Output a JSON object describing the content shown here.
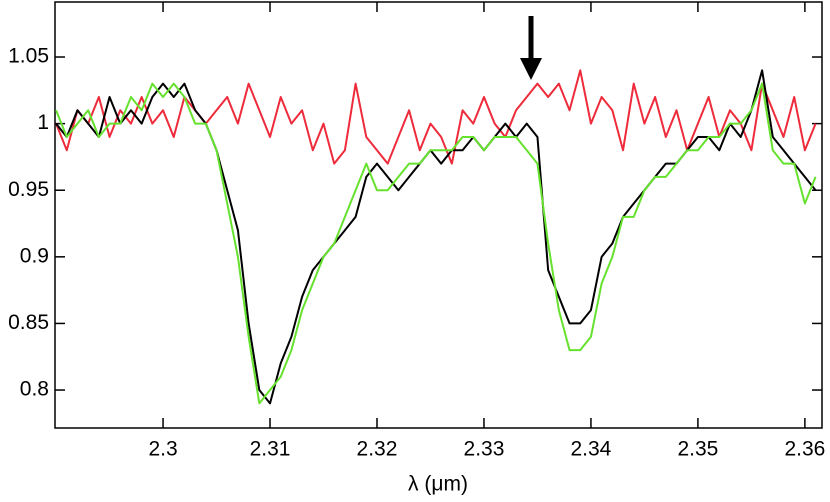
{
  "chart_data": {
    "type": "line",
    "xlabel": "λ (μm)",
    "x": [
      2.29,
      2.291,
      2.292,
      2.293,
      2.294,
      2.295,
      2.296,
      2.297,
      2.298,
      2.299,
      2.3,
      2.301,
      2.302,
      2.303,
      2.304,
      2.305,
      2.306,
      2.307,
      2.308,
      2.309,
      2.31,
      2.311,
      2.312,
      2.313,
      2.314,
      2.315,
      2.316,
      2.317,
      2.318,
      2.319,
      2.32,
      2.321,
      2.322,
      2.323,
      2.324,
      2.325,
      2.326,
      2.327,
      2.328,
      2.329,
      2.33,
      2.331,
      2.332,
      2.333,
      2.334,
      2.335,
      2.336,
      2.337,
      2.338,
      2.339,
      2.34,
      2.341,
      2.342,
      2.343,
      2.344,
      2.345,
      2.346,
      2.347,
      2.348,
      2.349,
      2.35,
      2.351,
      2.352,
      2.353,
      2.354,
      2.355,
      2.356,
      2.357,
      2.358,
      2.359,
      2.36,
      2.361
    ],
    "series": [
      {
        "color": "#ee2b3b",
        "values": [
          1.0,
          0.98,
          1.01,
          1.0,
          1.02,
          0.99,
          1.01,
          1.0,
          1.02,
          1.0,
          1.01,
          0.99,
          1.02,
          1.01,
          1.0,
          1.01,
          1.02,
          1.0,
          1.03,
          1.01,
          0.99,
          1.02,
          1.0,
          1.01,
          0.98,
          1.0,
          0.97,
          0.98,
          1.03,
          0.99,
          0.98,
          0.97,
          0.99,
          1.01,
          0.98,
          1.0,
          0.99,
          0.97,
          1.01,
          1.0,
          1.02,
          1.0,
          0.99,
          1.01,
          1.02,
          1.03,
          1.02,
          1.03,
          1.01,
          1.04,
          1.0,
          1.02,
          1.01,
          0.98,
          1.03,
          1.0,
          1.02,
          0.99,
          1.01,
          0.98,
          1.0,
          1.02,
          0.99,
          1.01,
          1.0,
          0.98,
          1.03,
          1.01,
          0.99,
          1.02,
          0.98,
          1.0
        ]
      },
      {
        "color": "#000000",
        "values": [
          1.0,
          0.99,
          1.01,
          1.0,
          0.99,
          1.02,
          1.0,
          1.01,
          1.0,
          1.02,
          1.03,
          1.02,
          1.03,
          1.01,
          1.0,
          0.98,
          0.95,
          0.92,
          0.85,
          0.8,
          0.79,
          0.82,
          0.84,
          0.87,
          0.89,
          0.9,
          0.91,
          0.92,
          0.93,
          0.96,
          0.97,
          0.96,
          0.95,
          0.96,
          0.97,
          0.98,
          0.97,
          0.98,
          0.98,
          0.99,
          0.98,
          0.99,
          1.0,
          0.99,
          1.0,
          0.99,
          0.89,
          0.87,
          0.85,
          0.85,
          0.86,
          0.9,
          0.91,
          0.93,
          0.94,
          0.95,
          0.96,
          0.97,
          0.97,
          0.98,
          0.99,
          0.99,
          0.98,
          1.0,
          0.99,
          1.01,
          1.04,
          0.99,
          0.98,
          0.97,
          0.96,
          0.95
        ]
      },
      {
        "color": "#66e22e",
        "values": [
          1.01,
          0.99,
          1.0,
          1.01,
          0.99,
          1.0,
          1.0,
          1.02,
          1.01,
          1.03,
          1.02,
          1.03,
          1.02,
          1.0,
          1.0,
          0.98,
          0.94,
          0.9,
          0.84,
          0.79,
          0.8,
          0.81,
          0.83,
          0.86,
          0.88,
          0.9,
          0.91,
          0.93,
          0.95,
          0.97,
          0.95,
          0.95,
          0.96,
          0.97,
          0.97,
          0.98,
          0.98,
          0.98,
          0.99,
          0.99,
          0.98,
          0.99,
          0.99,
          0.99,
          0.98,
          0.97,
          0.91,
          0.86,
          0.83,
          0.83,
          0.84,
          0.88,
          0.9,
          0.93,
          0.93,
          0.95,
          0.96,
          0.96,
          0.97,
          0.98,
          0.98,
          0.99,
          0.99,
          1.0,
          1.0,
          1.01,
          1.03,
          0.98,
          0.97,
          0.97,
          0.94,
          0.96
        ]
      }
    ],
    "xlim": [
      2.2899,
      2.3616
    ],
    "xticks": [
      2.3,
      2.31,
      2.32,
      2.33,
      2.34,
      2.35,
      2.36
    ],
    "ylim": [
      0.7715,
      1.0913
    ],
    "yticks": [
      0.8,
      0.85,
      0.9,
      0.95,
      1,
      1.05
    ]
  }
}
